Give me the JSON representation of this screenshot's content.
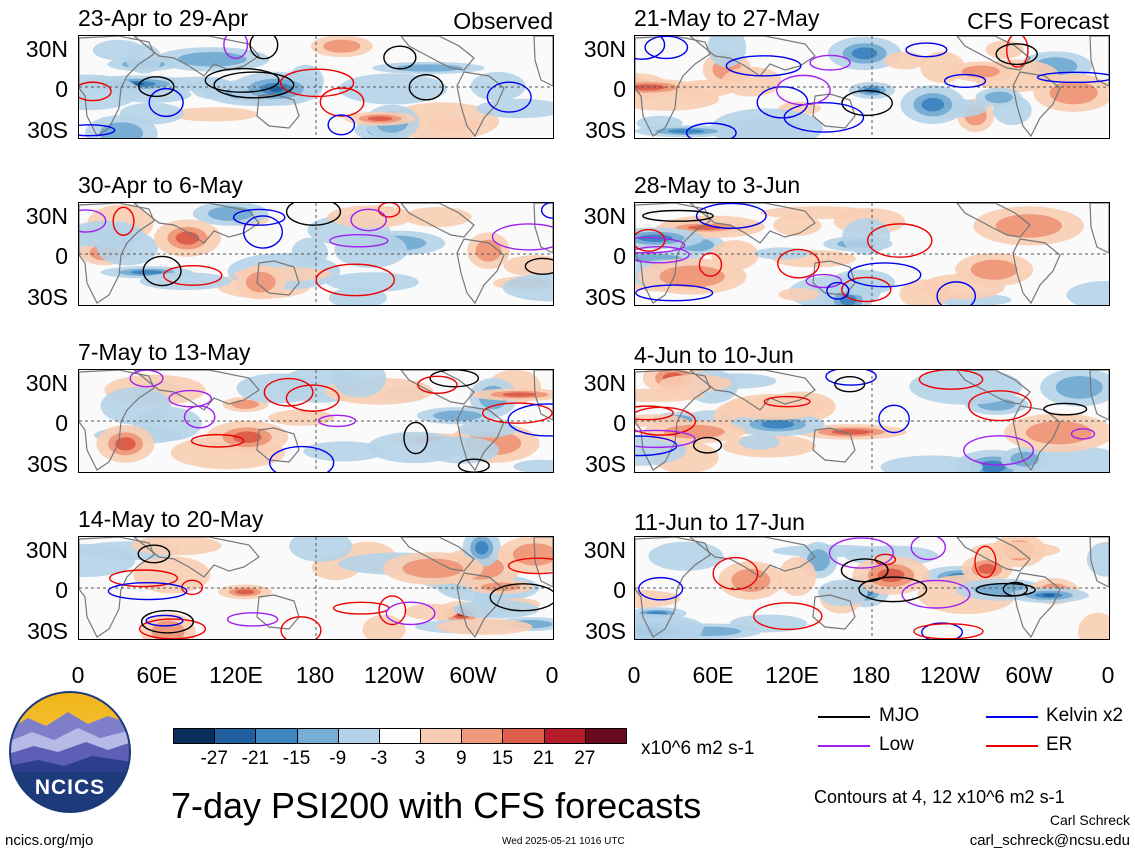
{
  "panels_left": [
    {
      "title": "23-Apr to 29-Apr",
      "corner": "Observed"
    },
    {
      "title": "30-Apr to 6-May",
      "corner": ""
    },
    {
      "title": "7-May to 13-May",
      "corner": ""
    },
    {
      "title": "14-May to 20-May",
      "corner": ""
    }
  ],
  "panels_right": [
    {
      "title": "21-May to 27-May",
      "corner": "CFS Forecast"
    },
    {
      "title": "28-May to 3-Jun",
      "corner": ""
    },
    {
      "title": "4-Jun to 10-Jun",
      "corner": ""
    },
    {
      "title": "11-Jun to 17-Jun",
      "corner": ""
    }
  ],
  "lat_labels": [
    "30N",
    "0",
    "30S"
  ],
  "lon_labels": [
    "0",
    "60E",
    "120E",
    "180",
    "120W",
    "60W",
    "0"
  ],
  "colorbar": {
    "ticks": [
      "-27",
      "-21",
      "-15",
      "-9",
      "-3",
      "3",
      "9",
      "15",
      "21",
      "27"
    ],
    "unit": "x10^6 m2 s-1",
    "colors": [
      "#0a2e5c",
      "#1f5f9e",
      "#3f86c0",
      "#78aed4",
      "#b5d3e8",
      "#ffffff",
      "#f8cdb3",
      "#ef9a7c",
      "#dc5e4b",
      "#b51c2a",
      "#6b0a1e"
    ]
  },
  "legend": {
    "items": [
      {
        "label": "MJO",
        "color": "#000000"
      },
      {
        "label": "Kelvin x2",
        "color": "#0000ee"
      },
      {
        "label": "Low",
        "color": "#a020f0"
      },
      {
        "label": "ER",
        "color": "#ee0000"
      }
    ],
    "contours_note": "Contours at 4, 12 x10^6 m2 s-1"
  },
  "logo_text": "NCICS",
  "main_title": "7-day PSI200 with CFS forecasts",
  "footer": {
    "website": "ncics.org/mjo",
    "timestamp": "Wed 2025-05-21 1016 UTC",
    "author": "Carl Schreck",
    "email": "carl_schreck@ncsu.edu"
  }
}
